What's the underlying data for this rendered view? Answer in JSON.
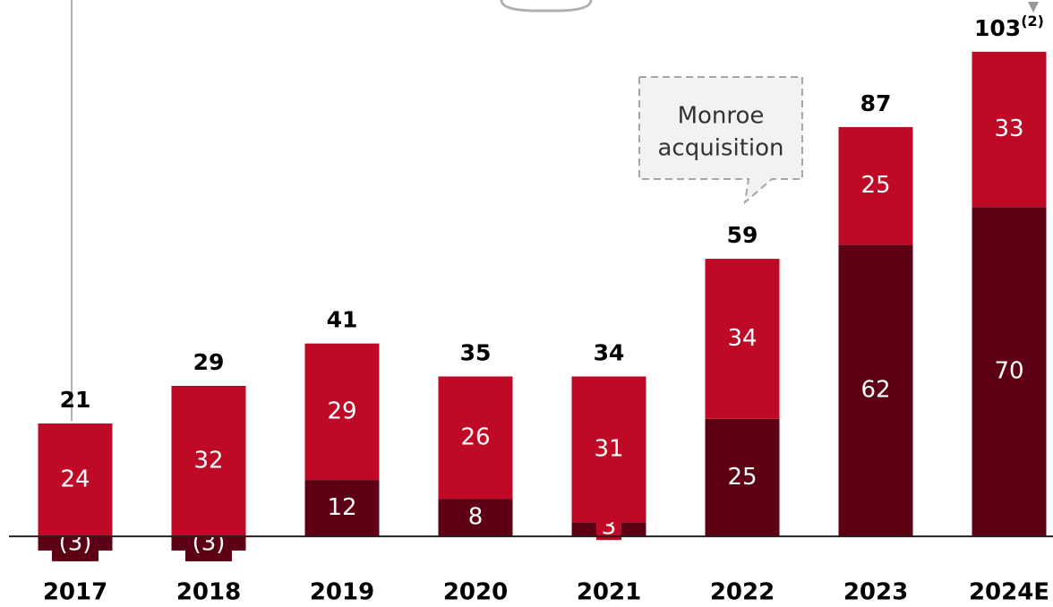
{
  "chart_data": {
    "type": "stacked_bar",
    "categories": [
      "2017",
      "2018",
      "2019",
      "2020",
      "2021",
      "2022",
      "2023",
      "2024E"
    ],
    "series": [
      {
        "color": "#5e0013",
        "values": [
          -3,
          -3,
          12,
          8,
          3,
          25,
          62,
          70
        ],
        "value_labels": [
          "(3)",
          "(3)",
          "12",
          "8",
          "3",
          "25",
          "62",
          "70"
        ]
      },
      {
        "color": "#be0a26",
        "values": [
          24,
          32,
          29,
          26,
          31,
          34,
          25,
          33
        ]
      }
    ],
    "totals": [
      21,
      29,
      41,
      35,
      34,
      59,
      87,
      103
    ],
    "total_note": {
      "index": 7,
      "label": "(2)"
    },
    "annotation": {
      "index": 5,
      "lines": [
        "Monroe",
        "acquisition"
      ]
    },
    "ylim": [
      -15,
      114
    ]
  }
}
